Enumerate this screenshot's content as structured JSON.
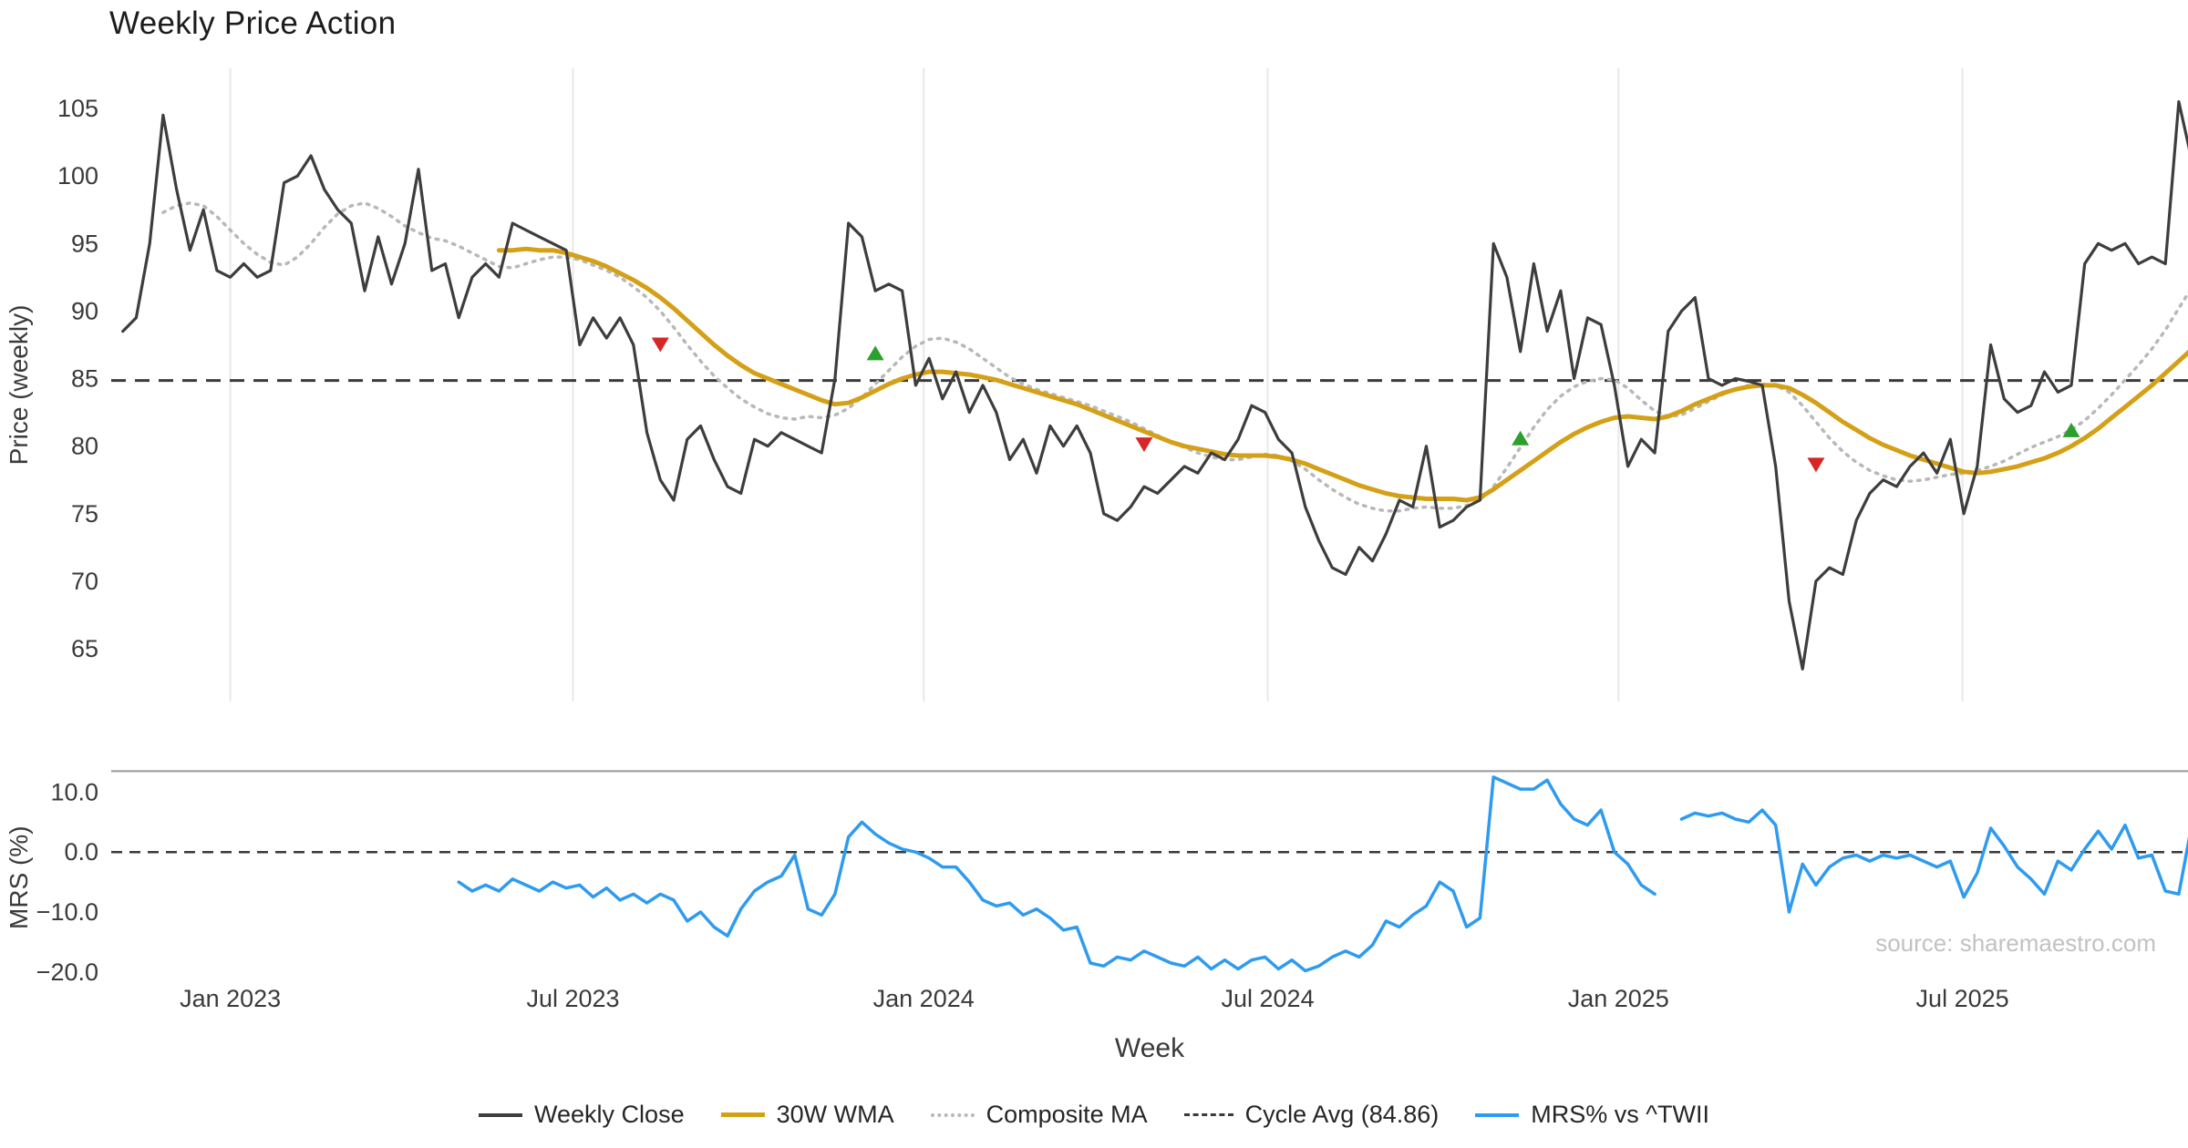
{
  "title": "Weekly Price Action",
  "source": "source: sharemaestro.com",
  "colors": {
    "grid": "#e8e8e8",
    "spine": "#999999",
    "tick": "#3a3a3a",
    "close": "#3d3d3d",
    "wma": "#D4A017",
    "composite": "#b8b8b8",
    "cycle": "#3a3a3a",
    "mrs": "#2E9BF0",
    "buy": "#2ca02c",
    "sell": "#d62728"
  },
  "legend": [
    "Weekly Close",
    "30W WMA",
    "Composite MA",
    "Cycle Avg (84.86)",
    "MRS% vs ^TWII"
  ],
  "chart_data": [
    {
      "type": "line",
      "panel": "price",
      "ylabel": "Price (weekly)",
      "xlabel": "Week",
      "ylim": [
        61.09,
        107.97
      ],
      "yticks": [
        65,
        70,
        75,
        80,
        85,
        90,
        95,
        100,
        105
      ],
      "x_unit": "week_index",
      "xticks": {
        "positions": [
          8,
          33.5,
          59.6,
          85.2,
          111.3,
          136.9
        ],
        "labels": [
          "Jan 2023",
          "Jul 2023",
          "Jan 2024",
          "Jul 2024",
          "Jan 2025",
          "Jul 2025"
        ]
      },
      "cycle_avg": 84.86,
      "series": [
        {
          "name": "Weekly Close",
          "style": "solid",
          "color": "#3d3d3d",
          "start_week": 0,
          "values": [
            88.5,
            89.5,
            95.0,
            104.5,
            99.0,
            94.5,
            97.5,
            93.0,
            92.5,
            93.5,
            92.5,
            93.0,
            99.5,
            100.0,
            101.5,
            99.0,
            97.5,
            96.5,
            91.5,
            95.5,
            92.0,
            95.0,
            100.5,
            93.0,
            93.5,
            89.5,
            92.5,
            93.5,
            92.5,
            96.5,
            96.0,
            95.5,
            95.0,
            94.5,
            87.5,
            89.5,
            88.0,
            89.5,
            87.5,
            81.0,
            77.5,
            76.0,
            80.5,
            81.5,
            79.0,
            77.0,
            76.5,
            80.5,
            80.0,
            81.0,
            80.5,
            80.0,
            79.5,
            85.0,
            96.5,
            95.5,
            91.5,
            92.0,
            91.5,
            84.5,
            86.5,
            83.5,
            85.5,
            82.5,
            84.5,
            82.5,
            79.0,
            80.5,
            78.0,
            81.5,
            80.0,
            81.5,
            79.5,
            75.0,
            74.5,
            75.5,
            77.0,
            76.5,
            77.5,
            78.5,
            78.0,
            79.5,
            79.0,
            80.5,
            83.0,
            82.5,
            80.5,
            79.5,
            75.5,
            73.0,
            71.0,
            70.5,
            72.5,
            71.5,
            73.5,
            76.0,
            75.5,
            80.0,
            74.0,
            74.5,
            75.5,
            76.0,
            95.0,
            92.5,
            87.0,
            93.5,
            88.5,
            91.5,
            85.0,
            89.5,
            89.0,
            84.5,
            78.5,
            80.5,
            79.5,
            88.5,
            90.0,
            91.0,
            85.0,
            84.5,
            85.0,
            84.8,
            84.5,
            78.5,
            68.5,
            63.5,
            70.0,
            71.0,
            70.5,
            74.5,
            76.5,
            77.5,
            77.0,
            78.5,
            79.5,
            78.0,
            80.5,
            75.0,
            78.5,
            87.5,
            83.5,
            82.5,
            83.0,
            85.5,
            84.0,
            84.5,
            93.5,
            95.0,
            94.5,
            95.0,
            93.5,
            94.0,
            93.5,
            105.5,
            101.0
          ]
        },
        {
          "name": "30W WMA",
          "style": "solid",
          "color": "#D4A017",
          "start_week": 28,
          "values": [
            94.5,
            94.5,
            94.6,
            94.5,
            94.5,
            94.3,
            94.0,
            93.7,
            93.3,
            92.8,
            92.3,
            91.7,
            91.0,
            90.2,
            89.3,
            88.4,
            87.5,
            86.7,
            86.0,
            85.4,
            85.0,
            84.6,
            84.2,
            83.8,
            83.4,
            83.1,
            83.2,
            83.6,
            84.1,
            84.6,
            85.0,
            85.3,
            85.5,
            85.5,
            85.4,
            85.3,
            85.1,
            84.9,
            84.6,
            84.3,
            84.0,
            83.7,
            83.4,
            83.1,
            82.7,
            82.3,
            81.9,
            81.5,
            81.1,
            80.7,
            80.3,
            80.0,
            79.8,
            79.6,
            79.4,
            79.3,
            79.3,
            79.3,
            79.2,
            79.0,
            78.7,
            78.3,
            77.9,
            77.5,
            77.1,
            76.8,
            76.5,
            76.3,
            76.2,
            76.1,
            76.1,
            76.1,
            76.0,
            76.2,
            76.8,
            77.5,
            78.2,
            78.9,
            79.6,
            80.3,
            80.9,
            81.4,
            81.8,
            82.1,
            82.2,
            82.1,
            82.0,
            82.2,
            82.6,
            83.1,
            83.5,
            83.9,
            84.2,
            84.4,
            84.5,
            84.5,
            84.3,
            83.8,
            83.2,
            82.5,
            81.8,
            81.2,
            80.6,
            80.1,
            79.7,
            79.3,
            79.0,
            78.7,
            78.4,
            78.1,
            78.0,
            78.1,
            78.3,
            78.5,
            78.8,
            79.1,
            79.5,
            80.0,
            80.6,
            81.3,
            82.1,
            82.9,
            83.7,
            84.5,
            85.4,
            86.3,
            87.2
          ]
        },
        {
          "name": "Composite MA",
          "style": "dotted",
          "color": "#b8b8b8",
          "start_week": 3,
          "values": [
            97.3,
            97.8,
            98.0,
            97.8,
            97.0,
            96.0,
            95.0,
            94.2,
            93.6,
            93.4,
            94.0,
            95.0,
            96.2,
            97.2,
            97.8,
            98.0,
            97.6,
            97.0,
            96.3,
            95.8,
            95.4,
            95.2,
            94.8,
            94.3,
            93.8,
            93.3,
            93.2,
            93.5,
            93.8,
            94.0,
            94.0,
            93.8,
            93.4,
            93.0,
            92.5,
            91.8,
            91.0,
            90.0,
            88.8,
            87.5,
            86.3,
            85.2,
            84.3,
            83.5,
            82.9,
            82.4,
            82.1,
            82.0,
            82.2,
            82.1,
            82.3,
            82.8,
            83.6,
            84.6,
            85.6,
            86.6,
            87.4,
            87.9,
            88.0,
            87.7,
            87.2,
            86.5,
            85.8,
            85.1,
            84.6,
            84.2,
            83.9,
            83.6,
            83.3,
            83.0,
            82.6,
            82.2,
            81.8,
            81.3,
            80.8,
            80.3,
            79.9,
            79.5,
            79.2,
            79.0,
            79.0,
            79.2,
            79.4,
            79.3,
            78.9,
            78.3,
            77.5,
            76.8,
            76.2,
            75.7,
            75.4,
            75.2,
            75.2,
            75.4,
            75.5,
            75.4,
            75.4,
            75.6,
            76.0,
            77.0,
            78.4,
            79.9,
            81.4,
            82.7,
            83.7,
            84.4,
            84.8,
            85.0,
            84.9,
            84.3,
            83.4,
            82.6,
            82.2,
            82.3,
            82.8,
            83.3,
            83.8,
            84.2,
            84.5,
            84.6,
            84.5,
            84.0,
            83.0,
            81.8,
            80.6,
            79.6,
            78.8,
            78.2,
            77.8,
            77.5,
            77.4,
            77.5,
            77.7,
            77.9,
            78.0,
            78.2,
            78.5,
            78.9,
            79.4,
            79.9,
            80.3,
            80.7,
            81.2,
            81.9,
            82.8,
            83.8,
            84.9,
            86.0,
            87.2,
            88.6,
            90.2,
            91.8
          ]
        },
        {
          "name": "Cycle Avg (84.86)",
          "style": "dashed",
          "color": "#3a3a3a",
          "value": 84.86
        }
      ],
      "markers": {
        "buy": [
          {
            "week": 56,
            "price": 86.9
          },
          {
            "week": 104,
            "price": 80.6
          },
          {
            "week": 145,
            "price": 81.2
          }
        ],
        "sell": [
          {
            "week": 40,
            "price": 87.5
          },
          {
            "week": 76,
            "price": 80.1
          },
          {
            "week": 126,
            "price": 78.6
          }
        ]
      }
    },
    {
      "type": "line",
      "panel": "mrs",
      "ylabel": "MRS (%)",
      "ylim": [
        -22.0,
        13.49
      ],
      "yticks": [
        10,
        0,
        -10,
        -20
      ],
      "ytick_labels": [
        "10.0",
        "0.0",
        "−10.0",
        "−20.0"
      ],
      "zero_line": 0,
      "series": [
        {
          "name": "MRS% vs ^TWII",
          "style": "solid",
          "color": "#2E9BF0",
          "start_week": 25,
          "values": [
            -5.0,
            -6.5,
            -5.5,
            -6.5,
            -4.5,
            -5.5,
            -6.5,
            -5.0,
            -6.0,
            -5.5,
            -7.5,
            -6.0,
            -8.0,
            -7.0,
            -8.5,
            -7.0,
            -8.0,
            -11.5,
            -10.0,
            -12.5,
            -14.0,
            -9.5,
            -6.5,
            -5.0,
            -4.0,
            -0.5,
            -9.5,
            -10.5,
            -7.0,
            2.5,
            5.0,
            3.0,
            1.5,
            0.5,
            0.0,
            -1.0,
            -2.5,
            -2.5,
            -5.0,
            -8.0,
            -9.0,
            -8.5,
            -10.5,
            -9.5,
            -11.0,
            -13.0,
            -12.5,
            -18.5,
            -19.0,
            -17.5,
            -18.0,
            -16.5,
            -17.5,
            -18.5,
            -19.0,
            -17.5,
            -19.5,
            -18.0,
            -19.5,
            -18.0,
            -17.5,
            -19.5,
            -18.0,
            -19.8,
            -19.0,
            -17.5,
            -16.5,
            -17.5,
            -15.5,
            -11.5,
            -12.5,
            -10.5,
            -9.0,
            -5.0,
            -6.5,
            -12.5,
            -11.0,
            12.5,
            11.5,
            10.5,
            10.5,
            12.0,
            8.0,
            5.5,
            4.5,
            7.0,
            0.0,
            -2.0,
            -5.5,
            -7.0,
            null,
            5.5,
            6.5,
            6.0,
            6.5,
            5.5,
            5.0,
            7.0,
            4.5,
            -10.0,
            -2.0,
            -5.5,
            -2.5,
            -1.0,
            -0.5,
            -1.5,
            -0.5,
            -1.0,
            -0.5,
            -1.5,
            -2.5,
            -1.5,
            -7.5,
            -3.5,
            4.0,
            1.0,
            -2.5,
            -4.5,
            -7.0,
            -1.5,
            -3.0,
            0.5,
            3.5,
            0.5,
            4.5,
            -1.0,
            -0.5,
            -6.5,
            -7.0,
            5.0
          ]
        }
      ]
    }
  ]
}
